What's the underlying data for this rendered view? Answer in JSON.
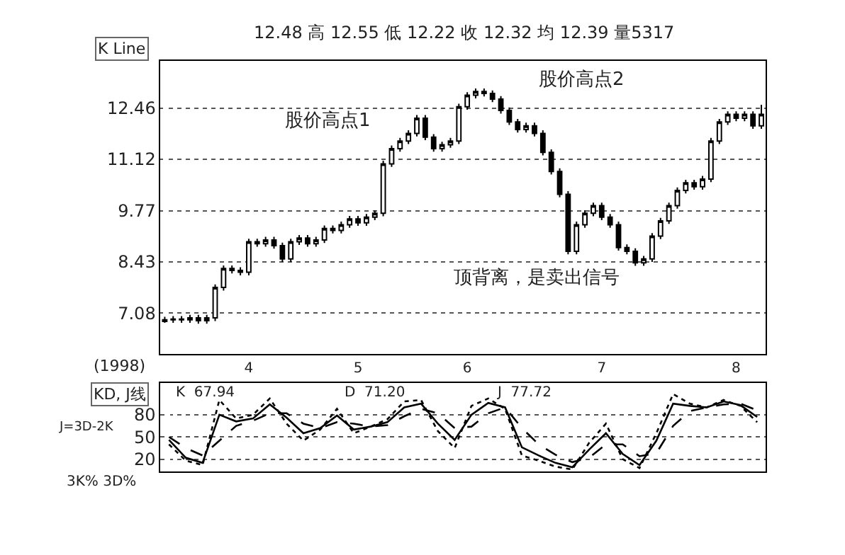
{
  "chart_data": [
    {
      "type": "candlestick",
      "title": "12.48 高 12.55 低 12.22 收 12.32 均 12.39 量5317",
      "ylabel": "K Line",
      "xlabel": "(1998)",
      "categories": [
        null,
        null,
        null,
        null,
        null,
        null,
        null,
        null,
        null,
        null,
        "4",
        null,
        null,
        null,
        null,
        null,
        null,
        null,
        null,
        null,
        null,
        null,
        null,
        "5",
        null,
        null,
        null,
        null,
        null,
        null,
        null,
        null,
        null,
        null,
        null,
        null,
        "6",
        null,
        null,
        null,
        null,
        null,
        null,
        null,
        null,
        null,
        null,
        null,
        null,
        null,
        null,
        null,
        "7",
        null,
        null,
        null,
        null,
        null,
        null,
        null,
        null,
        null,
        null,
        null,
        null,
        null,
        null,
        null,
        "8",
        null,
        null,
        null
      ],
      "ohlc": [
        [
          6.86,
          6.98,
          6.82,
          6.9
        ],
        [
          6.9,
          7.0,
          6.82,
          6.92
        ],
        [
          6.92,
          7.0,
          6.82,
          6.9
        ],
        [
          6.9,
          7.03,
          6.82,
          6.95
        ],
        [
          6.95,
          7.03,
          6.8,
          6.88
        ],
        [
          6.88,
          7.03,
          6.8,
          6.95
        ],
        [
          6.95,
          7.83,
          6.87,
          7.75
        ],
        [
          7.75,
          8.33,
          7.67,
          8.25
        ],
        [
          8.25,
          8.33,
          8.12,
          8.2
        ],
        [
          8.2,
          8.28,
          8.07,
          8.15
        ],
        [
          8.15,
          9.03,
          8.07,
          8.95
        ],
        [
          8.95,
          9.03,
          8.82,
          8.9
        ],
        [
          8.9,
          9.08,
          8.82,
          9.0
        ],
        [
          9.0,
          9.08,
          8.77,
          8.85
        ],
        [
          8.85,
          8.93,
          8.42,
          8.5
        ],
        [
          8.5,
          9.03,
          8.42,
          8.95
        ],
        [
          8.95,
          9.13,
          8.87,
          9.05
        ],
        [
          9.05,
          9.13,
          8.82,
          8.9
        ],
        [
          8.9,
          9.08,
          8.82,
          9.0
        ],
        [
          9.0,
          9.38,
          8.92,
          9.3
        ],
        [
          9.3,
          9.38,
          9.17,
          9.25
        ],
        [
          9.25,
          9.48,
          9.17,
          9.4
        ],
        [
          9.4,
          9.63,
          9.32,
          9.55
        ],
        [
          9.55,
          9.63,
          9.37,
          9.45
        ],
        [
          9.45,
          9.68,
          9.37,
          9.6
        ],
        [
          9.6,
          9.78,
          9.52,
          9.7
        ],
        [
          9.7,
          11.08,
          9.62,
          11.0
        ],
        [
          11.0,
          11.48,
          10.92,
          11.4
        ],
        [
          11.4,
          11.68,
          11.32,
          11.6
        ],
        [
          11.6,
          11.88,
          11.52,
          11.8
        ],
        [
          11.8,
          12.28,
          11.72,
          12.2
        ],
        [
          12.2,
          12.28,
          11.62,
          11.7
        ],
        [
          11.7,
          11.78,
          11.32,
          11.4
        ],
        [
          11.4,
          11.58,
          11.32,
          11.5
        ],
        [
          11.5,
          11.68,
          11.42,
          11.6
        ],
        [
          11.6,
          12.58,
          11.52,
          12.5
        ],
        [
          12.5,
          12.88,
          12.42,
          12.8
        ],
        [
          12.8,
          12.98,
          12.72,
          12.9
        ],
        [
          12.9,
          12.98,
          12.77,
          12.85
        ],
        [
          12.85,
          12.93,
          12.62,
          12.7
        ],
        [
          12.7,
          12.78,
          12.32,
          12.4
        ],
        [
          12.4,
          12.48,
          12.02,
          12.1
        ],
        [
          12.1,
          12.18,
          11.82,
          11.9
        ],
        [
          11.9,
          12.08,
          11.82,
          12.0
        ],
        [
          12.0,
          12.08,
          11.72,
          11.8
        ],
        [
          11.8,
          11.88,
          11.22,
          11.3
        ],
        [
          11.3,
          11.38,
          10.72,
          10.8
        ],
        [
          10.8,
          10.88,
          10.12,
          10.2
        ],
        [
          10.2,
          10.28,
          8.62,
          8.7
        ],
        [
          8.7,
          9.48,
          8.62,
          9.4
        ],
        [
          9.4,
          9.78,
          9.32,
          9.7
        ],
        [
          9.7,
          9.98,
          9.62,
          9.9
        ],
        [
          9.9,
          9.98,
          9.52,
          9.6
        ],
        [
          9.6,
          9.68,
          9.32,
          9.4
        ],
        [
          9.4,
          9.48,
          8.72,
          8.8
        ],
        [
          8.8,
          8.88,
          8.62,
          8.7
        ],
        [
          8.7,
          8.78,
          8.32,
          8.4
        ],
        [
          8.4,
          8.58,
          8.32,
          8.5
        ],
        [
          8.5,
          9.18,
          8.42,
          9.1
        ],
        [
          9.1,
          9.58,
          9.02,
          9.5
        ],
        [
          9.5,
          9.98,
          9.42,
          9.9
        ],
        [
          9.9,
          10.38,
          9.82,
          10.3
        ],
        [
          10.3,
          10.58,
          10.22,
          10.5
        ],
        [
          10.5,
          10.58,
          10.32,
          10.4
        ],
        [
          10.4,
          10.68,
          10.32,
          10.6
        ],
        [
          10.6,
          11.68,
          10.52,
          11.6
        ],
        [
          11.6,
          12.18,
          11.52,
          12.1
        ],
        [
          12.1,
          12.38,
          12.02,
          12.3
        ],
        [
          12.3,
          12.38,
          12.12,
          12.2
        ],
        [
          12.2,
          12.38,
          12.12,
          12.3
        ],
        [
          12.3,
          12.38,
          11.92,
          12.0
        ],
        [
          12.0,
          12.55,
          11.92,
          12.3
        ]
      ],
      "color": "#000000",
      "ylim": [
        6.0,
        13.7
      ],
      "yticks": [
        7.08,
        8.43,
        9.77,
        11.12,
        12.46
      ],
      "grid": "y",
      "annotations": [
        "股价高点1",
        "股价高点2",
        "顶背离，是卖出信号"
      ]
    },
    {
      "type": "line",
      "title": "KD, J线",
      "ylabel": "J=3D-2K",
      "categories": [
        null,
        null,
        null,
        null,
        null,
        null,
        null,
        null,
        null,
        null,
        null,
        null,
        null,
        null,
        null,
        null,
        null,
        null,
        null,
        null,
        null,
        null,
        null,
        null,
        null,
        null,
        null,
        null,
        null,
        null,
        null,
        null,
        null,
        null,
        null,
        null
      ],
      "series": [
        {
          "color": "#000000",
          "line_style": "solid",
          "values": [
            46,
            22,
            15,
            80,
            71,
            75,
            94,
            76,
            55,
            62,
            79,
            60,
            64,
            70,
            90,
            95,
            68,
            46,
            80,
            96,
            90,
            36,
            25,
            15,
            9,
            33,
            55,
            27,
            12,
            45,
            95,
            92,
            90,
            98,
            93,
            77
          ]
        },
        {
          "color": "#000000",
          "line_style": "dashed",
          "values": [
            50,
            35,
            25,
            45,
            65,
            72,
            82,
            82,
            68,
            62,
            70,
            68,
            64,
            66,
            78,
            88,
            82,
            62,
            64,
            82,
            90,
            62,
            40,
            26,
            16,
            22,
            40,
            40,
            24,
            28,
            65,
            85,
            90,
            94,
            95,
            86
          ]
        },
        {
          "color": "#000000",
          "line_style": "dotted",
          "values": [
            40,
            18,
            12,
            100,
            75,
            80,
            102,
            68,
            45,
            60,
            88,
            55,
            64,
            74,
            98,
            100,
            58,
            35,
            92,
            102,
            88,
            25,
            18,
            10,
            6,
            42,
            68,
            20,
            8,
            55,
            108,
            95,
            90,
            100,
            92,
            70
          ]
        }
      ],
      "ylim": [
        3,
        123
      ],
      "yticks": [
        20,
        50,
        80
      ],
      "grid": "y",
      "tick_labels": "y",
      "marker": "none",
      "annotations": [
        "K  67.94",
        "D  71.20",
        "J  77.72",
        "3K% 3D%"
      ]
    }
  ]
}
